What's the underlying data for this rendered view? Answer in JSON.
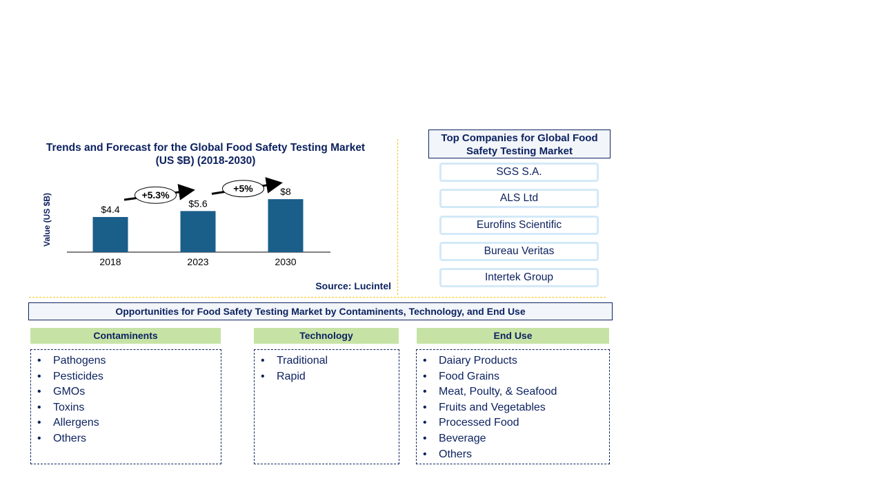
{
  "chart_data": {
    "type": "bar",
    "title": "Trends and Forecast for the Global Food Safety Testing Market (US $B) (2018-2030)",
    "title_lines": [
      "Trends and Forecast for the Global Food Safety Testing Market",
      "(US $B) (2018-2030)"
    ],
    "ylabel": "Value (US $B)",
    "xlabel": "",
    "categories": [
      "2018",
      "2023",
      "2030"
    ],
    "values": [
      4.4,
      5.6,
      8
    ],
    "data_labels": [
      "$4.4",
      "$5.6",
      "$8"
    ],
    "bar_color": "#1a5e8a",
    "grid": false,
    "annotations": [
      {
        "text": "+5.3%",
        "from": "2018",
        "to": "2023"
      },
      {
        "text": "+5%",
        "from": "2023",
        "to": "2030"
      }
    ],
    "source": "Source: Lucintel"
  },
  "companies": {
    "title": "Top Companies for Global Food Safety Testing Market",
    "items": [
      "SGS  S.A.",
      "ALS Ltd",
      "Eurofins  Scientific",
      "Bureau  Veritas",
      "Intertek  Group"
    ]
  },
  "opportunities": {
    "title": "Opportunities for Food Safety Testing Market by Contaminents, Technology, and End Use",
    "columns": [
      {
        "header": "Contaminents",
        "items": [
          "Pathogens",
          "Pesticides",
          "GMOs",
          "Toxins",
          "Allergens",
          "Others"
        ]
      },
      {
        "header": "Technology",
        "items": [
          "Traditional",
          "Rapid"
        ]
      },
      {
        "header": "End Use",
        "items": [
          "Daiary Products",
          "Food Grains",
          "Meat, Poulty, & Seafood",
          "Fruits and Vegetables",
          "Processed  Food",
          "Beverage",
          "Others"
        ]
      }
    ]
  }
}
